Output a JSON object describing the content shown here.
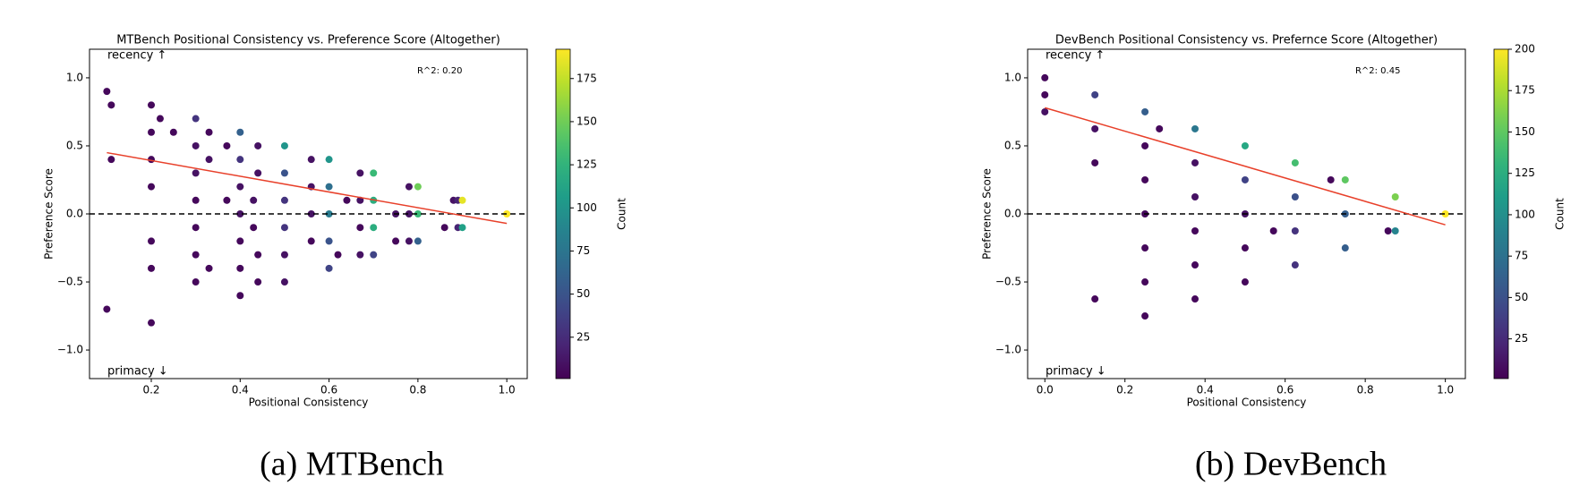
{
  "chart_data": [
    {
      "type": "scatter",
      "title": "MTBench Positional Consistency vs. Preference Score (Altogether)",
      "xlabel": "Positional Consistency",
      "ylabel": "Preference Score",
      "annotation": "R^2: 0.20",
      "annotations": [
        "recency ↑",
        "primacy ↓"
      ],
      "caption": "(a) MTBench",
      "colorbar_label": "Count",
      "colormap": "viridis",
      "clim": [
        1,
        192
      ],
      "cticks": [
        25,
        50,
        75,
        100,
        125,
        150,
        175
      ],
      "xlim": [
        0.061,
        1.046
      ],
      "ylim": [
        -1.21,
        1.21
      ],
      "xticks": [
        0.2,
        0.4,
        0.6,
        0.8,
        {
          "value": 1,
          "label": "1.0"
        }
      ],
      "yticks": [
        {
          "value": -1,
          "label": "−1.0"
        },
        {
          "value": -0.5,
          "label": "−0.5"
        },
        {
          "value": 0,
          "label": "0.0"
        },
        {
          "value": 0.5,
          "label": "0.5"
        },
        {
          "value": 1,
          "label": "1.0"
        }
      ],
      "hline": 0,
      "fit": {
        "x": [
          0.1,
          1.0
        ],
        "y": [
          0.45,
          -0.07
        ],
        "color": "#e8402a"
      },
      "x": [
        0.1,
        0.11,
        0.11,
        0.1,
        0.2,
        0.2,
        0.2,
        0.2,
        0.2,
        0.2,
        0.2,
        0.22,
        0.25,
        0.3,
        0.3,
        0.3,
        0.3,
        0.3,
        0.3,
        0.3,
        0.33,
        0.33,
        0.33,
        0.37,
        0.37,
        0.4,
        0.4,
        0.4,
        0.4,
        0.4,
        0.4,
        0.4,
        0.43,
        0.43,
        0.44,
        0.44,
        0.44,
        0.44,
        0.5,
        0.5,
        0.5,
        0.5,
        0.5,
        0.5,
        0.56,
        0.56,
        0.56,
        0.56,
        0.6,
        0.6,
        0.6,
        0.6,
        0.6,
        0.62,
        0.64,
        0.67,
        0.67,
        0.67,
        0.67,
        0.7,
        0.7,
        0.7,
        0.7,
        0.75,
        0.75,
        0.78,
        0.78,
        0.78,
        0.8,
        0.8,
        0.8,
        0.86,
        0.88,
        0.89,
        0.89,
        0.9,
        0.9,
        1.0
      ],
      "y": [
        0.9,
        0.8,
        0.4,
        -0.7,
        0.8,
        0.6,
        0.4,
        0.2,
        -0.2,
        -0.4,
        -0.8,
        0.7,
        0.6,
        0.7,
        0.5,
        0.3,
        0.1,
        -0.1,
        -0.3,
        -0.5,
        0.6,
        0.4,
        -0.4,
        0.5,
        0.1,
        0.6,
        0.4,
        0.2,
        0,
        -0.2,
        -0.4,
        -0.6,
        0.1,
        -0.1,
        0.5,
        0.3,
        -0.3,
        -0.5,
        0.5,
        0.3,
        0.1,
        -0.1,
        -0.3,
        -0.5,
        0.4,
        0.2,
        0,
        -0.2,
        0.4,
        0.2,
        0,
        -0.2,
        -0.4,
        -0.3,
        0.1,
        0.3,
        0.1,
        -0.1,
        -0.3,
        0.3,
        0.1,
        -0.1,
        -0.3,
        0,
        -0.2,
        0.2,
        0,
        -0.2,
        0.2,
        0,
        -0.2,
        -0.1,
        0.1,
        0.1,
        -0.1,
        0.1,
        -0.1,
        0
      ],
      "c": [
        5,
        5,
        5,
        5,
        5,
        5,
        5,
        5,
        5,
        5,
        5,
        5,
        5,
        30,
        10,
        10,
        5,
        5,
        5,
        5,
        5,
        10,
        5,
        5,
        5,
        60,
        30,
        10,
        10,
        5,
        5,
        5,
        10,
        5,
        10,
        10,
        5,
        5,
        100,
        50,
        30,
        30,
        10,
        10,
        10,
        10,
        10,
        5,
        100,
        70,
        80,
        50,
        40,
        5,
        5,
        10,
        10,
        5,
        10,
        130,
        120,
        120,
        40,
        10,
        5,
        10,
        10,
        10,
        150,
        130,
        60,
        5,
        10,
        20,
        20,
        185,
        110,
        192
      ]
    },
    {
      "type": "scatter",
      "title": "DevBench Positional Consistency vs. Prefernce Score (Altogether)",
      "xlabel": "Positional Consistency",
      "ylabel": "Preference Score",
      "annotation": "R^2: 0.45",
      "annotations": [
        "recency ↑",
        "primacy ↓"
      ],
      "caption": "(b) DevBench",
      "colorbar_label": "Count",
      "colormap": "viridis",
      "clim": [
        1,
        200
      ],
      "cticks": [
        25,
        50,
        75,
        100,
        125,
        150,
        175,
        200
      ],
      "xlim": [
        -0.043,
        1.05
      ],
      "ylim": [
        -1.21,
        1.21
      ],
      "xticks": [
        {
          "value": 0,
          "label": "0.0"
        },
        0.2,
        0.4,
        0.6,
        0.8,
        {
          "value": 1,
          "label": "1.0"
        }
      ],
      "yticks": [
        {
          "value": -1,
          "label": "−1.0"
        },
        {
          "value": -0.5,
          "label": "−0.5"
        },
        {
          "value": 0,
          "label": "0.0"
        },
        {
          "value": 0.5,
          "label": "0.5"
        },
        {
          "value": 1,
          "label": "1.0"
        }
      ],
      "hline": 0,
      "fit": {
        "x": [
          0,
          1.0
        ],
        "y": [
          0.78,
          -0.08
        ],
        "color": "#e8402a"
      },
      "x": [
        0,
        0,
        0,
        0.125,
        0.125,
        0.125,
        0.125,
        0.25,
        0.25,
        0.25,
        0.25,
        0.25,
        0.25,
        0.25,
        0.286,
        0.375,
        0.375,
        0.375,
        0.375,
        0.375,
        0.375,
        0.5,
        0.5,
        0.5,
        0.5,
        0.5,
        0.571,
        0.625,
        0.625,
        0.625,
        0.625,
        0.714,
        0.75,
        0.75,
        0.75,
        0.857,
        0.875,
        0.875,
        1.0
      ],
      "y": [
        1,
        0.875,
        0.75,
        0.875,
        0.625,
        0.375,
        -0.625,
        0.75,
        0.5,
        0.25,
        0,
        -0.25,
        -0.5,
        -0.75,
        0.625,
        0.625,
        0.375,
        0.125,
        -0.125,
        -0.375,
        -0.625,
        0.5,
        0.25,
        0,
        -0.25,
        -0.5,
        -0.125,
        0.375,
        0.125,
        -0.125,
        -0.375,
        0.25,
        0.25,
        0,
        -0.25,
        -0.125,
        0.125,
        -0.125,
        0
      ],
      "c": [
        5,
        5,
        10,
        40,
        10,
        5,
        5,
        60,
        5,
        5,
        5,
        5,
        5,
        5,
        5,
        80,
        10,
        10,
        5,
        5,
        5,
        120,
        40,
        10,
        5,
        5,
        5,
        140,
        50,
        30,
        30,
        5,
        150,
        60,
        60,
        5,
        160,
        90,
        200
      ]
    }
  ]
}
